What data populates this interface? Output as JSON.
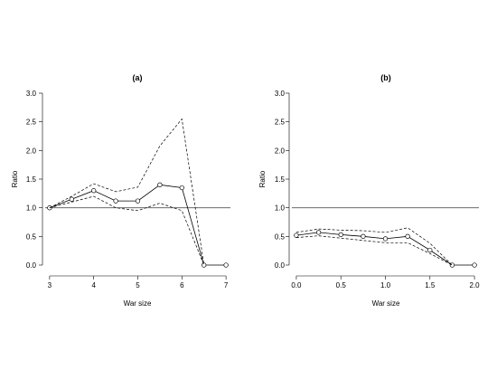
{
  "chart_data": [
    {
      "type": "line",
      "title": "(a)",
      "xlabel": "War size",
      "ylabel": "Ratio",
      "xlim": [
        2.9,
        7.1
      ],
      "ylim": [
        -0.1,
        3.0
      ],
      "xticks": [
        3,
        4,
        5,
        6,
        7
      ],
      "xtick_labels": [
        "3",
        "4",
        "5",
        "6",
        "7"
      ],
      "yticks": [
        0.0,
        0.5,
        1.0,
        1.5,
        2.0,
        2.5,
        3.0
      ],
      "ytick_labels": [
        "0.0",
        "0.5",
        "1.0",
        "1.5",
        "2.0",
        "2.5",
        "3.0"
      ],
      "reference_line": 1.0,
      "grid": false,
      "x": [
        3.0,
        3.5,
        4.0,
        4.5,
        5.0,
        5.5,
        6.0,
        6.5,
        7.0
      ],
      "series": [
        {
          "role": "estimate",
          "style": "solid-with-open-circles",
          "values": [
            1.0,
            1.15,
            1.3,
            1.12,
            1.12,
            1.4,
            1.35,
            0.0,
            0.0
          ]
        },
        {
          "role": "upper",
          "style": "dashed",
          "values": [
            1.0,
            1.2,
            1.42,
            1.28,
            1.36,
            2.08,
            2.55,
            0.0,
            null
          ]
        },
        {
          "role": "lower",
          "style": "dashed",
          "values": [
            1.0,
            1.1,
            1.2,
            1.0,
            0.95,
            1.08,
            0.95,
            0.0,
            null
          ]
        }
      ]
    },
    {
      "type": "line",
      "title": "(b)",
      "xlabel": "War size",
      "ylabel": "Ratio",
      "xlim": [
        -0.05,
        2.05
      ],
      "ylim": [
        -0.1,
        3.0
      ],
      "xticks": [
        0.0,
        0.5,
        1.0,
        1.5,
        2.0
      ],
      "xtick_labels": [
        "0.0",
        "0.5",
        "1.0",
        "1.5",
        "2.0"
      ],
      "yticks": [
        0.0,
        0.5,
        1.0,
        1.5,
        2.0,
        2.5,
        3.0
      ],
      "ytick_labels": [
        "0.0",
        "0.5",
        "1.0",
        "1.5",
        "2.0",
        "2.5",
        "3.0"
      ],
      "reference_line": 1.0,
      "grid": false,
      "x": [
        0.0,
        0.25,
        0.5,
        0.75,
        1.0,
        1.25,
        1.5,
        1.75,
        2.0
      ],
      "series": [
        {
          "role": "estimate",
          "style": "solid-with-open-circles",
          "values": [
            0.52,
            0.57,
            0.53,
            0.5,
            0.46,
            0.5,
            0.26,
            0.0,
            0.0
          ]
        },
        {
          "role": "upper",
          "style": "dashed",
          "values": [
            0.57,
            0.63,
            0.61,
            0.6,
            0.57,
            0.65,
            0.38,
            0.0,
            null
          ]
        },
        {
          "role": "lower",
          "style": "dashed",
          "values": [
            0.48,
            0.51,
            0.47,
            0.43,
            0.39,
            0.39,
            0.2,
            0.0,
            null
          ]
        }
      ]
    }
  ]
}
